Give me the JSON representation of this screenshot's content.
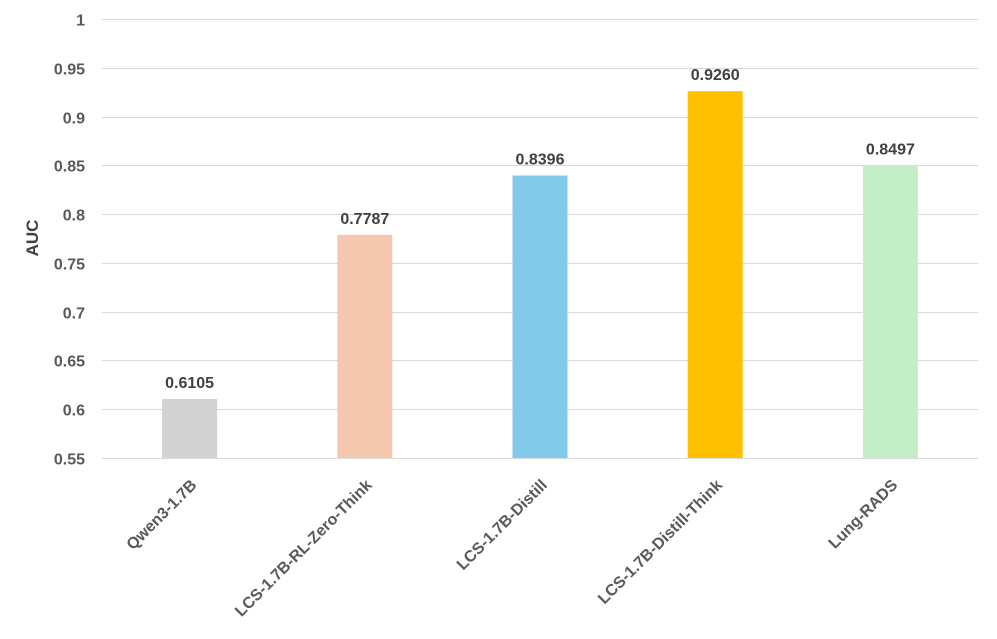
{
  "chart_data": {
    "type": "bar",
    "title": "",
    "xlabel": "",
    "ylabel": "AUC",
    "ylim": [
      0.55,
      1
    ],
    "yticks": [
      "0.55",
      "0.6",
      "0.65",
      "0.7",
      "0.75",
      "0.8",
      "0.85",
      "0.9",
      "0.95",
      "1"
    ],
    "ytick_values": [
      0.55,
      0.6,
      0.65,
      0.7,
      0.75,
      0.8,
      0.85,
      0.9,
      0.95,
      1
    ],
    "categories": [
      "Qwen3-1.7B",
      "LCS-1.7B-RL-Zero-Think",
      "LCS-1.7B-Distill",
      "LCS-1.7B-Distill-Think",
      "Lung-RADS"
    ],
    "values": [
      0.6105,
      0.7787,
      0.8396,
      0.926,
      0.8497
    ],
    "data_labels": [
      "0.6105",
      "0.7787",
      "0.8396",
      "0.9260",
      "0.8497"
    ],
    "colors": [
      "#d3d3d3",
      "#f5c7ae",
      "#82caea",
      "#ffc000",
      "#c3eec6"
    ],
    "grid": true,
    "legend": "none"
  }
}
